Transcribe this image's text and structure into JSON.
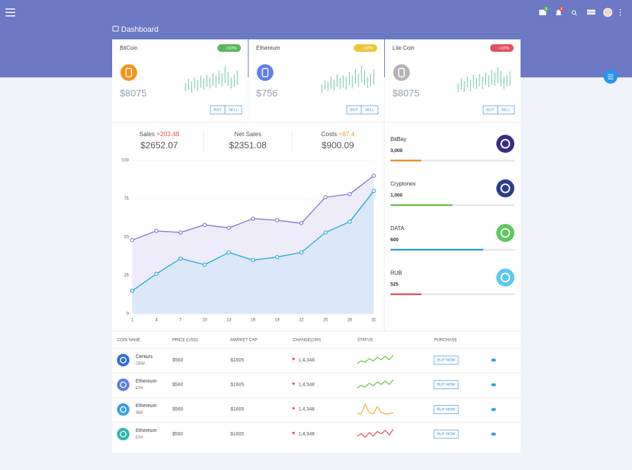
{
  "header": {
    "title": "Dashboard",
    "badges": [
      "4",
      "4"
    ]
  },
  "cards": [
    {
      "name": "BitCoin",
      "change": "+10%",
      "price": "$8075",
      "buy": "BUY",
      "sell": "SELL",
      "color": "#f7931a",
      "badge_color": "#5cb85c",
      "candles": [
        [
          10,
          22
        ],
        [
          12,
          28
        ],
        [
          8,
          24
        ],
        [
          14,
          30
        ],
        [
          11,
          26
        ],
        [
          15,
          33
        ],
        [
          12,
          28
        ],
        [
          16,
          34
        ],
        [
          14,
          30
        ],
        [
          18,
          36
        ],
        [
          15,
          32
        ],
        [
          20,
          40
        ],
        [
          17,
          36
        ],
        [
          22,
          46
        ],
        [
          18,
          38
        ],
        [
          14,
          30
        ],
        [
          16,
          34
        ],
        [
          19,
          40
        ]
      ]
    },
    {
      "name": "Ethereum",
      "change": "+10%",
      "price": "$756",
      "buy": "BUY",
      "sell": "SELL",
      "color": "#627eea",
      "badge_color": "#f0c33c",
      "candles": [
        [
          8,
          20
        ],
        [
          12,
          26
        ],
        [
          10,
          24
        ],
        [
          13,
          31
        ],
        [
          11,
          27
        ],
        [
          16,
          34
        ],
        [
          13,
          29
        ],
        [
          15,
          33
        ],
        [
          12,
          31
        ],
        [
          19,
          38
        ],
        [
          14,
          33
        ],
        [
          21,
          42
        ],
        [
          16,
          35
        ],
        [
          23,
          47
        ],
        [
          19,
          40
        ],
        [
          15,
          31
        ],
        [
          17,
          35
        ],
        [
          20,
          42
        ]
      ]
    },
    {
      "name": "Lite Coin",
      "change": "+10%",
      "price": "$8075",
      "buy": "BUY",
      "sell": "SELL",
      "color": "#b5b5b5",
      "badge_color": "#e05260",
      "candles": [
        [
          9,
          21
        ],
        [
          13,
          29
        ],
        [
          9,
          25
        ],
        [
          15,
          31
        ],
        [
          10,
          27
        ],
        [
          14,
          34
        ],
        [
          13,
          29
        ],
        [
          17,
          35
        ],
        [
          13,
          31
        ],
        [
          19,
          37
        ],
        [
          16,
          33
        ],
        [
          19,
          41
        ],
        [
          18,
          37
        ],
        [
          21,
          45
        ],
        [
          17,
          39
        ],
        [
          13,
          31
        ],
        [
          17,
          33
        ],
        [
          18,
          39
        ]
      ]
    }
  ],
  "stats": [
    {
      "label": "Sales",
      "delta": "+203.48",
      "delta_color": "#e74c3c",
      "value": "$2652.07"
    },
    {
      "label": "Net Sales",
      "value": "$2351.08"
    },
    {
      "label": "Costs",
      "delta": "+87.4",
      "delta_color": "#f0a030",
      "value": "$900.09"
    }
  ],
  "chart_data": {
    "type": "area",
    "x": [
      1,
      4,
      7,
      10,
      13,
      16,
      19,
      22,
      25,
      28,
      31
    ],
    "xlim": [
      1,
      31
    ],
    "xticks": [
      1,
      4,
      7,
      10,
      13,
      16,
      19,
      22,
      25,
      28,
      31
    ],
    "ylim": [
      0,
      100
    ],
    "yticks": [
      0,
      25,
      50,
      75,
      100
    ],
    "grid": true,
    "series": [
      {
        "color": "#8c7bd6",
        "fill": "#efecfa",
        "values": [
          48,
          54,
          53,
          58,
          56,
          62,
          61,
          59,
          76,
          78,
          90
        ]
      },
      {
        "color": "#27b0d6",
        "fill": "#dbe8fa",
        "values": [
          15,
          26,
          36,
          32,
          40,
          35,
          37,
          40,
          53,
          60,
          80
        ]
      }
    ]
  },
  "markets": [
    {
      "name": "BitBay",
      "value": "3,000",
      "progress": 25,
      "color": "#f28c28",
      "icon": "#3b2d84"
    },
    {
      "name": "Cryptonex",
      "value": "1,000",
      "progress": 50,
      "color": "#6cc04a",
      "icon": "#2c3e8c"
    },
    {
      "name": "DATA",
      "value": "600",
      "progress": 75,
      "color": "#2a9ee0",
      "icon": "#5bc85b"
    },
    {
      "name": "RUB",
      "value": "525",
      "progress": 25,
      "color": "#e05260",
      "icon": "#5bc8f5"
    }
  ],
  "table": {
    "headers": [
      "COIN NAME",
      "PRICE (USD)",
      "MARKET CAP",
      "CHANGE(24H)",
      "STATUS",
      "PURCHASE"
    ],
    "rows": [
      {
        "name": "Centurs",
        "symbol": "CENZ",
        "price": "$560",
        "market_cap": "$1605",
        "change": "1,4,348",
        "action": "BUY NOW",
        "color": "#2f6fd6",
        "status_color": "#6cc04a",
        "status": [
          2,
          4,
          3,
          6,
          4,
          7,
          5,
          8,
          5,
          9
        ]
      },
      {
        "name": "Ethereum",
        "symbol": "ETH",
        "price": "$560",
        "market_cap": "$1605",
        "change": "1,4,348",
        "action": "BUY NOW",
        "color": "#5b7ee8",
        "status_color": "#6cc04a",
        "status": [
          2,
          4,
          3,
          6,
          4,
          7,
          5,
          8,
          5,
          9
        ]
      },
      {
        "name": "Ethereum",
        "symbol": "SBD",
        "price": "$560",
        "market_cap": "$1605",
        "change": "1,4,348",
        "action": "BUY NOW",
        "color": "#3aa0e8",
        "status_color": "#f0b429",
        "status": [
          1,
          1,
          9,
          2,
          1,
          7,
          2,
          1,
          1,
          2
        ]
      },
      {
        "name": "Ethereum",
        "symbol": "ETH",
        "price": "$560",
        "market_cap": "$1605",
        "change": "1,4,348",
        "action": "BUY NOW",
        "color": "#2bb8b0",
        "status_color": "#e05260",
        "status": [
          3,
          5,
          2,
          6,
          3,
          7,
          5,
          8,
          4,
          9
        ]
      }
    ]
  }
}
